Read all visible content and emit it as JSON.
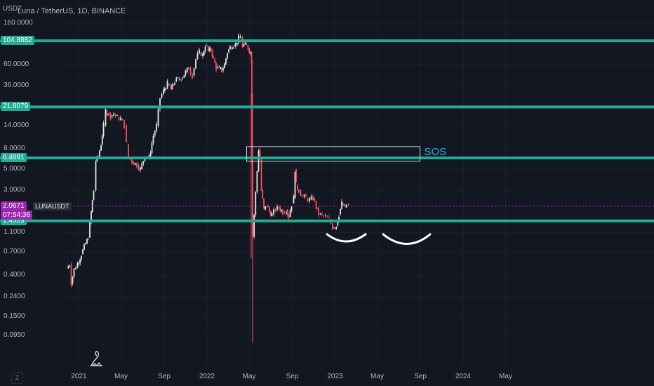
{
  "header": {
    "symbol_line": "Luna / TetherUS, 1D, BINANCE",
    "unit": "USDT"
  },
  "price_axis": {
    "ticks": [
      "160.0000",
      "60.0000",
      "36.0000",
      "14.0000",
      "8.0000",
      "5.0000",
      "3.0000",
      "1.1000",
      "0.7000",
      "0.4000",
      "0.2400",
      "0.1500",
      "0.0950"
    ]
  },
  "time_axis": {
    "ticks": [
      "2021",
      "May",
      "Sep",
      "2022",
      "May",
      "Sep",
      "2023",
      "May",
      "Sep",
      "2024",
      "May"
    ]
  },
  "levels": [
    {
      "label": "104.8882",
      "value": 104.8882
    },
    {
      "label": "21.8079",
      "value": 21.8079
    },
    {
      "label": "6.4891",
      "value": 6.4891
    },
    {
      "label": "1.4525",
      "value": 1.4525
    }
  ],
  "current": {
    "price": "2.0671",
    "countdown": "07:54:36",
    "symbol": "LUNAUSDT",
    "value": 2.0671
  },
  "annotation": {
    "text": "SOS"
  },
  "zoom_button": "Z",
  "colors": {
    "background": "#131722",
    "level_line": "#22ab94",
    "up_candle": "#e6e6e6",
    "down_candle": "#f7525f",
    "current_line": "#9c27b0",
    "sos_text": "#2eb3d9"
  },
  "chart_data": {
    "type": "candlestick",
    "title": "Luna / TetherUS, 1D, BINANCE",
    "ylabel": "USDT",
    "y_scale": "log",
    "ylim": [
      0.08,
      200
    ],
    "xlim": [
      "2020-11-17",
      "2024-07-21"
    ],
    "horizontal_levels": [
      104.8882,
      21.8079,
      6.4891,
      1.4525
    ],
    "current_price": 2.0671,
    "sos_box": {
      "x_start": "2022-04-24",
      "x_end": "2023-08-31",
      "y_low": 6.0,
      "y_high": 8.5
    },
    "close_series": [
      {
        "x": "2020-11-28",
        "y": 0.47
      },
      {
        "x": "2020-12-05",
        "y": 0.52
      },
      {
        "x": "2020-12-10",
        "y": 0.33
      },
      {
        "x": "2020-12-18",
        "y": 0.46
      },
      {
        "x": "2020-12-28",
        "y": 0.53
      },
      {
        "x": "2021-01-08",
        "y": 0.66
      },
      {
        "x": "2021-01-20",
        "y": 0.85
      },
      {
        "x": "2021-01-28",
        "y": 0.98
      },
      {
        "x": "2021-02-05",
        "y": 1.8
      },
      {
        "x": "2021-02-12",
        "y": 3.0
      },
      {
        "x": "2021-02-18",
        "y": 6.0
      },
      {
        "x": "2021-02-25",
        "y": 6.7
      },
      {
        "x": "2021-03-05",
        "y": 9.0
      },
      {
        "x": "2021-03-12",
        "y": 14.0
      },
      {
        "x": "2021-03-18",
        "y": 20.0
      },
      {
        "x": "2021-03-25",
        "y": 19.0
      },
      {
        "x": "2021-04-01",
        "y": 17.5
      },
      {
        "x": "2021-04-10",
        "y": 18.5
      },
      {
        "x": "2021-04-20",
        "y": 17.0
      },
      {
        "x": "2021-04-30",
        "y": 16.5
      },
      {
        "x": "2021-05-10",
        "y": 14.0
      },
      {
        "x": "2021-05-16",
        "y": 9.0
      },
      {
        "x": "2021-05-22",
        "y": 6.5
      },
      {
        "x": "2021-06-01",
        "y": 6.0
      },
      {
        "x": "2021-06-15",
        "y": 5.5
      },
      {
        "x": "2021-06-25",
        "y": 5.0
      },
      {
        "x": "2021-07-08",
        "y": 6.8
      },
      {
        "x": "2021-07-20",
        "y": 6.5
      },
      {
        "x": "2021-08-01",
        "y": 11.0
      },
      {
        "x": "2021-08-10",
        "y": 14.0
      },
      {
        "x": "2021-08-20",
        "y": 27.0
      },
      {
        "x": "2021-08-30",
        "y": 32.0
      },
      {
        "x": "2021-09-10",
        "y": 38.0
      },
      {
        "x": "2021-09-20",
        "y": 33.0
      },
      {
        "x": "2021-10-01",
        "y": 40.0
      },
      {
        "x": "2021-10-10",
        "y": 42.0
      },
      {
        "x": "2021-10-20",
        "y": 43.0
      },
      {
        "x": "2021-11-01",
        "y": 50.0
      },
      {
        "x": "2021-11-10",
        "y": 55.0
      },
      {
        "x": "2021-11-20",
        "y": 46.0
      },
      {
        "x": "2021-11-30",
        "y": 68.0
      },
      {
        "x": "2021-12-10",
        "y": 80.0
      },
      {
        "x": "2021-12-20",
        "y": 75.0
      },
      {
        "x": "2021-12-27",
        "y": 95.0
      },
      {
        "x": "2022-01-05",
        "y": 82.0
      },
      {
        "x": "2022-01-12",
        "y": 85.0
      },
      {
        "x": "2022-01-20",
        "y": 68.0
      },
      {
        "x": "2022-01-27",
        "y": 55.0
      },
      {
        "x": "2022-02-05",
        "y": 54.0
      },
      {
        "x": "2022-02-12",
        "y": 52.0
      },
      {
        "x": "2022-02-20",
        "y": 60.0
      },
      {
        "x": "2022-02-28",
        "y": 80.0
      },
      {
        "x": "2022-03-08",
        "y": 90.0
      },
      {
        "x": "2022-03-16",
        "y": 96.0
      },
      {
        "x": "2022-03-24",
        "y": 98.0
      },
      {
        "x": "2022-04-01",
        "y": 112.0
      },
      {
        "x": "2022-04-06",
        "y": 115.0
      },
      {
        "x": "2022-04-12",
        "y": 92.0
      },
      {
        "x": "2022-04-20",
        "y": 97.0
      },
      {
        "x": "2022-04-28",
        "y": 88.0
      },
      {
        "x": "2022-05-05",
        "y": 80.0
      },
      {
        "x": "2022-05-08",
        "y": 66.0
      },
      {
        "x": "2022-05-09",
        "y": 30.0
      },
      {
        "x": "2022-05-10",
        "y": 6.0
      },
      {
        "x": "2022-05-11",
        "y": 1.0
      },
      {
        "x": "2022-05-28",
        "y": 8.0
      },
      {
        "x": "2022-06-01",
        "y": 6.3
      },
      {
        "x": "2022-06-05",
        "y": 3.0
      },
      {
        "x": "2022-06-12",
        "y": 1.9
      },
      {
        "x": "2022-06-20",
        "y": 2.1
      },
      {
        "x": "2022-06-28",
        "y": 1.8
      },
      {
        "x": "2022-07-05",
        "y": 1.7
      },
      {
        "x": "2022-07-15",
        "y": 1.9
      },
      {
        "x": "2022-07-25",
        "y": 2.0
      },
      {
        "x": "2022-08-05",
        "y": 1.8
      },
      {
        "x": "2022-08-15",
        "y": 1.9
      },
      {
        "x": "2022-08-22",
        "y": 1.6
      },
      {
        "x": "2022-08-30",
        "y": 2.2
      },
      {
        "x": "2022-09-05",
        "y": 2.5
      },
      {
        "x": "2022-09-09",
        "y": 5.0
      },
      {
        "x": "2022-09-12",
        "y": 3.4
      },
      {
        "x": "2022-09-20",
        "y": 3.0
      },
      {
        "x": "2022-09-30",
        "y": 2.6
      },
      {
        "x": "2022-10-10",
        "y": 2.5
      },
      {
        "x": "2022-10-20",
        "y": 2.4
      },
      {
        "x": "2022-10-30",
        "y": 2.5
      },
      {
        "x": "2022-11-08",
        "y": 2.0
      },
      {
        "x": "2022-11-15",
        "y": 1.7
      },
      {
        "x": "2022-11-25",
        "y": 1.65
      },
      {
        "x": "2022-12-05",
        "y": 1.6
      },
      {
        "x": "2022-12-15",
        "y": 1.5
      },
      {
        "x": "2022-12-25",
        "y": 1.25
      },
      {
        "x": "2023-01-05",
        "y": 1.3
      },
      {
        "x": "2023-01-12",
        "y": 1.7
      },
      {
        "x": "2023-01-20",
        "y": 2.2
      },
      {
        "x": "2023-01-27",
        "y": 2.0
      },
      {
        "x": "2023-02-02",
        "y": 2.15
      },
      {
        "x": "2023-02-08",
        "y": 2.07
      }
    ]
  }
}
